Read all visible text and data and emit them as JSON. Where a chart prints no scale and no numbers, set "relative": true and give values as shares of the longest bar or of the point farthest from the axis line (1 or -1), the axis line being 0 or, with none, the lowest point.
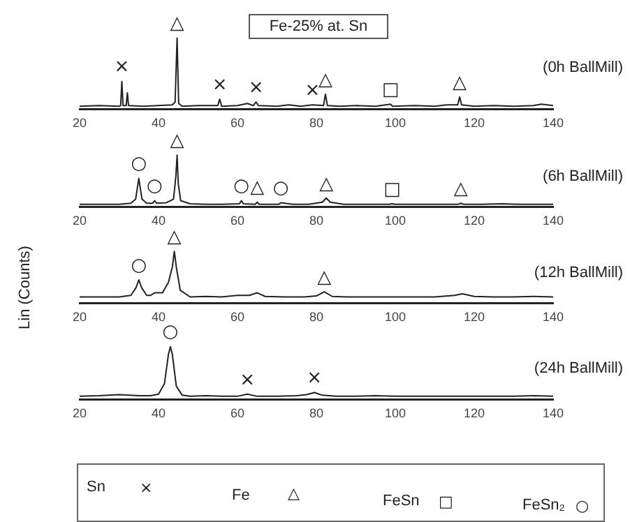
{
  "chart_data": [
    {
      "type": "line",
      "title": "Fe-25% at. Sn",
      "relative": true,
      "xlim": [
        20,
        140
      ],
      "xticks": [
        20,
        40,
        60,
        80,
        100,
        120,
        140
      ],
      "x": [
        20,
        25,
        30,
        30.4,
        30.7,
        31,
        31.8,
        32.1,
        32.4,
        36,
        40,
        43.5,
        44.2,
        44.7,
        45.1,
        46,
        50,
        55,
        55.5,
        56,
        60,
        62.5,
        64,
        64.7,
        65.3,
        70,
        73,
        76,
        79,
        81.8,
        82.3,
        82.8,
        86,
        90,
        95,
        98.8,
        99.3,
        105,
        110,
        113,
        115.8,
        116.3,
        116.8,
        120,
        125,
        130,
        135,
        137,
        140
      ],
      "series": [
        {
          "color": "#222222",
          "values": [
            0.04,
            0.05,
            0.04,
            0.05,
            0.39,
            0.05,
            0.05,
            0.23,
            0.05,
            0.04,
            0.05,
            0.06,
            0.1,
            1,
            0.08,
            0.04,
            0.05,
            0.05,
            0.14,
            0.04,
            0.05,
            0.08,
            0.05,
            0.1,
            0.05,
            0.04,
            0.06,
            0.04,
            0.06,
            0.05,
            0.21,
            0.05,
            0.04,
            0.05,
            0.04,
            0.07,
            0.04,
            0.05,
            0.04,
            0.06,
            0.06,
            0.17,
            0.06,
            0.04,
            0.05,
            0.04,
            0.05,
            0.07,
            0.05
          ]
        }
      ],
      "annotations": [
        "(0h BallMill)",
        {
          "text": "×",
          "x": 30.7,
          "y": 0.39
        },
        {
          "text": "△",
          "x": 44.7,
          "y": 1
        },
        {
          "text": "×",
          "x": 55.5,
          "y": 0.14
        },
        {
          "text": "×",
          "x": 64.7,
          "y": 0.1
        },
        {
          "text": "×",
          "x": 79,
          "y": 0.06
        },
        {
          "text": "△",
          "x": 82.3,
          "y": 0.21
        },
        {
          "text": "□",
          "x": 98.8,
          "y": 0.07
        },
        {
          "text": "△",
          "x": 116.3,
          "y": 0.17
        }
      ]
    },
    {
      "type": "line",
      "relative": true,
      "xlim": [
        20,
        140
      ],
      "xticks": [
        20,
        40,
        60,
        80,
        100,
        120,
        140
      ],
      "x": [
        20,
        25,
        30,
        33,
        34.2,
        35,
        35.8,
        37,
        38.5,
        39,
        39.5,
        42,
        43.8,
        44.4,
        44.7,
        45,
        45.6,
        48,
        52,
        56,
        60.5,
        61,
        61.5,
        64.5,
        65,
        65.5,
        68,
        70.5,
        71,
        74,
        78,
        81.5,
        82.5,
        83.5,
        87,
        92,
        98.5,
        99.2,
        100,
        105,
        110,
        116,
        116.6,
        117.2,
        122,
        127,
        131,
        135,
        140
      ],
      "series": [
        {
          "color": "#222222",
          "values": [
            0.05,
            0.05,
            0.05,
            0.07,
            0.15,
            0.55,
            0.15,
            0.07,
            0.07,
            0.12,
            0.07,
            0.08,
            0.15,
            0.6,
            1,
            0.45,
            0.12,
            0.06,
            0.05,
            0.05,
            0.06,
            0.12,
            0.06,
            0.05,
            0.09,
            0.05,
            0.05,
            0.05,
            0.08,
            0.05,
            0.05,
            0.09,
            0.17,
            0.09,
            0.05,
            0.05,
            0.05,
            0.06,
            0.05,
            0.05,
            0.05,
            0.05,
            0.07,
            0.05,
            0.05,
            0.06,
            0.05,
            0.05,
            0.05
          ]
        }
      ],
      "annotations": [
        "(6h BallMill)",
        {
          "text": "○",
          "x": 35,
          "y": 0.55
        },
        {
          "text": "○",
          "x": 39,
          "y": 0.12
        },
        {
          "text": "△",
          "x": 44.7,
          "y": 1
        },
        {
          "text": "○",
          "x": 61,
          "y": 0.12
        },
        {
          "text": "△",
          "x": 65,
          "y": 0.09
        },
        {
          "text": "○",
          "x": 71,
          "y": 0.08
        },
        {
          "text": "△",
          "x": 82.5,
          "y": 0.17
        },
        {
          "text": "□",
          "x": 99.2,
          "y": 0.06
        },
        {
          "text": "△",
          "x": 116.6,
          "y": 0.07
        }
      ]
    },
    {
      "type": "line",
      "ylabel": "Lin (Counts)",
      "relative": true,
      "xlim": [
        20,
        140
      ],
      "xticks": [
        20,
        40,
        60,
        80,
        100,
        120,
        140
      ],
      "x": [
        20,
        25,
        30,
        33,
        34.3,
        35,
        35.7,
        37,
        38,
        39,
        41,
        42.5,
        43.5,
        44,
        44.5,
        45.5,
        48,
        52,
        56,
        60,
        63,
        65,
        67,
        72,
        77,
        80,
        82,
        84,
        88,
        93,
        100,
        105,
        110,
        115,
        117,
        120,
        125,
        130,
        135,
        140
      ],
      "series": [
        {
          "color": "#222222",
          "values": [
            0.12,
            0.12,
            0.12,
            0.15,
            0.3,
            0.45,
            0.3,
            0.15,
            0.15,
            0.2,
            0.2,
            0.4,
            0.7,
            1,
            0.7,
            0.25,
            0.12,
            0.13,
            0.12,
            0.15,
            0.15,
            0.2,
            0.13,
            0.12,
            0.12,
            0.14,
            0.22,
            0.13,
            0.12,
            0.12,
            0.12,
            0.12,
            0.12,
            0.15,
            0.18,
            0.13,
            0.12,
            0.12,
            0.13,
            0.12
          ]
        }
      ],
      "annotations": [
        "(12h BallMill)",
        {
          "text": "○",
          "x": 35,
          "y": 0.45
        },
        {
          "text": "△",
          "x": 44,
          "y": 1
        },
        {
          "text": "△",
          "x": 82,
          "y": 0.22
        }
      ]
    },
    {
      "type": "line",
      "relative": true,
      "xlim": [
        20,
        140
      ],
      "xticks": [
        20,
        40,
        60,
        80,
        100,
        120,
        140
      ],
      "x": [
        20,
        25,
        30,
        35,
        38,
        40,
        41.5,
        42.5,
        43,
        43.5,
        44.5,
        46,
        48,
        52,
        56,
        60,
        62.5,
        65,
        70,
        75,
        77.5,
        79.5,
        81.5,
        85,
        90,
        95,
        100,
        105,
        110,
        115,
        120,
        125,
        130,
        135,
        140
      ],
      "series": [
        {
          "color": "#222222",
          "values": [
            0.06,
            0.07,
            0.09,
            0.07,
            0.07,
            0.1,
            0.3,
            0.85,
            1,
            0.85,
            0.25,
            0.08,
            0.06,
            0.07,
            0.06,
            0.06,
            0.1,
            0.06,
            0.06,
            0.07,
            0.09,
            0.13,
            0.08,
            0.06,
            0.06,
            0.07,
            0.06,
            0.06,
            0.06,
            0.06,
            0.06,
            0.06,
            0.06,
            0.07,
            0.06
          ]
        }
      ],
      "annotations": [
        "(24h BallMill)",
        {
          "text": "○",
          "x": 43,
          "y": 1
        },
        {
          "text": "×",
          "x": 62.5,
          "y": 0.1
        },
        {
          "text": "×",
          "x": 79.5,
          "y": 0.13
        }
      ]
    },
    {
      "type": "other",
      "annotations": [
        "Sn",
        "×",
        "Fe",
        "△",
        "FeSn",
        "□",
        "FeSn₂",
        "○"
      ]
    }
  ]
}
